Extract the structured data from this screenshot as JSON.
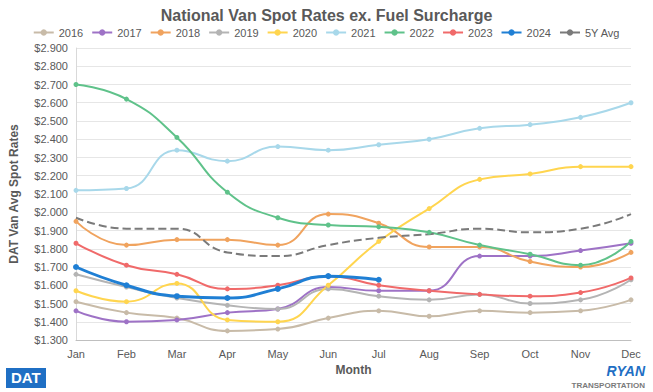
{
  "chart_data": {
    "type": "line",
    "title": "National Van Spot Rates ex. Fuel Surcharge",
    "x_label": "Month",
    "y_label": "DAT Van Avg Spot Rates",
    "annotations": [
      "DAT",
      "RYAN",
      "TRANSPORTATION"
    ],
    "categories": [
      "Jan",
      "Feb",
      "Mar",
      "Apr",
      "May",
      "Jun",
      "Jul",
      "Aug",
      "Sep",
      "Oct",
      "Nov",
      "Dec"
    ],
    "ylim": [
      1.3,
      2.9
    ],
    "yticks": [
      {
        "value": 1.3,
        "label": "$1.300"
      },
      {
        "value": 1.4,
        "label": "$1.400"
      },
      {
        "value": 1.5,
        "label": "$1.500"
      },
      {
        "value": 1.6,
        "label": "$1.600"
      },
      {
        "value": 1.7,
        "label": "$1.700"
      },
      {
        "value": 1.8,
        "label": "$1.800"
      },
      {
        "value": 1.9,
        "label": "$1.900"
      },
      {
        "value": 2.0,
        "label": "$2.000"
      },
      {
        "value": 2.1,
        "label": "$2.100"
      },
      {
        "value": 2.2,
        "label": "$2.200"
      },
      {
        "value": 2.3,
        "label": "$2.300"
      },
      {
        "value": 2.4,
        "label": "$2.400"
      },
      {
        "value": 2.5,
        "label": "$2.500"
      },
      {
        "value": 2.6,
        "label": "$2.600"
      },
      {
        "value": 2.7,
        "label": "$2.700"
      },
      {
        "value": 2.8,
        "label": "$2.800"
      },
      {
        "value": 2.9,
        "label": "$2.900"
      }
    ],
    "grid": true,
    "legend": "top",
    "series": [
      {
        "name": "2016",
        "color": "#c8bba8",
        "marker": "circle",
        "line_style": "solid",
        "values": [
          1.51,
          1.45,
          1.42,
          1.35,
          1.36,
          1.42,
          1.46,
          1.43,
          1.46,
          1.45,
          1.46,
          1.52
        ]
      },
      {
        "name": "2017",
        "color": "#9e72c6",
        "marker": "circle",
        "line_style": "solid",
        "values": [
          1.46,
          1.4,
          1.41,
          1.45,
          1.47,
          1.59,
          1.57,
          1.57,
          1.76,
          1.76,
          1.79,
          1.83
        ]
      },
      {
        "name": "2018",
        "color": "#f0a35e",
        "marker": "circle",
        "line_style": "solid",
        "values": [
          1.95,
          1.82,
          1.85,
          1.85,
          1.82,
          1.99,
          1.94,
          1.81,
          1.81,
          1.73,
          1.7,
          1.78
        ]
      },
      {
        "name": "2019",
        "color": "#b4b4b4",
        "marker": "circle",
        "line_style": "solid",
        "values": [
          1.66,
          1.59,
          1.53,
          1.49,
          1.47,
          1.58,
          1.54,
          1.52,
          1.55,
          1.5,
          1.52,
          1.63
        ]
      },
      {
        "name": "2020",
        "color": "#ffd54f",
        "marker": "circle",
        "line_style": "solid",
        "values": [
          1.57,
          1.51,
          1.61,
          1.41,
          1.4,
          1.6,
          1.84,
          2.02,
          2.18,
          2.21,
          2.25,
          2.25
        ]
      },
      {
        "name": "2021",
        "color": "#a8d8ea",
        "marker": "circle",
        "line_style": "solid",
        "values": [
          2.12,
          2.13,
          2.34,
          2.28,
          2.36,
          2.34,
          2.37,
          2.4,
          2.46,
          2.48,
          2.52,
          2.6
        ]
      },
      {
        "name": "2022",
        "color": "#5fc28a",
        "marker": "circle",
        "line_style": "solid",
        "values": [
          2.7,
          2.62,
          2.41,
          2.11,
          1.97,
          1.93,
          1.92,
          1.89,
          1.82,
          1.77,
          1.71,
          1.84
        ]
      },
      {
        "name": "2023",
        "color": "#f06a6a",
        "marker": "circle",
        "line_style": "solid",
        "values": [
          1.83,
          1.71,
          1.66,
          1.58,
          1.6,
          1.65,
          1.6,
          1.57,
          1.55,
          1.54,
          1.56,
          1.64
        ]
      },
      {
        "name": "2024",
        "color": "#1f7fd4",
        "marker": "circle",
        "line_style": "solid",
        "values": [
          1.7,
          1.6,
          1.54,
          1.53,
          1.58,
          1.65,
          1.63,
          null,
          null,
          null,
          null,
          null
        ]
      },
      {
        "name": "5Y Avg",
        "color": "#7a7a7a",
        "marker": "none",
        "line_style": "dashed",
        "values": [
          1.97,
          1.91,
          1.91,
          1.78,
          1.76,
          1.82,
          1.86,
          1.88,
          1.91,
          1.89,
          1.91,
          1.99
        ]
      }
    ]
  }
}
